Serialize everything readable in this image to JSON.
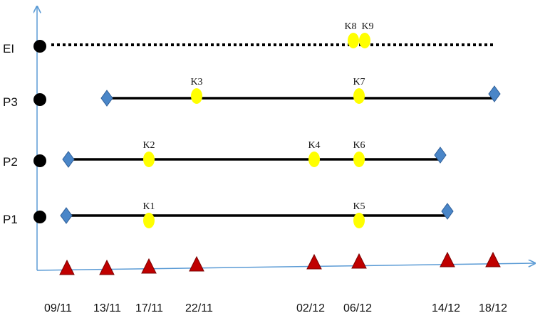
{
  "colors": {
    "axis": "#5b9bd5",
    "line": "#000000",
    "marker_row": "#000000",
    "milestone": "#ffff00",
    "endpoint": "#4a86c8",
    "event": "#c00000"
  },
  "rows": [
    {
      "label": "EI",
      "style": "dotted",
      "start": null,
      "end": "18/12"
    },
    {
      "label": "P3",
      "style": "solid",
      "start": "13/11",
      "end": "18/12"
    },
    {
      "label": "P2",
      "style": "solid",
      "start": "09/11",
      "end": "14/12"
    },
    {
      "label": "P1",
      "style": "solid",
      "start": "09/11",
      "end": "14/12"
    }
  ],
  "milestones": [
    {
      "label": "K1",
      "row": "P1",
      "date": "17/11"
    },
    {
      "label": "K2",
      "row": "P2",
      "date": "17/11"
    },
    {
      "label": "K3",
      "row": "P3",
      "date": "22/11"
    },
    {
      "label": "K4",
      "row": "P2",
      "date": "02/12"
    },
    {
      "label": "K5",
      "row": "P1",
      "date": "06/12"
    },
    {
      "label": "K6",
      "row": "P2",
      "date": "06/12"
    },
    {
      "label": "K7",
      "row": "P3",
      "date": "06/12"
    },
    {
      "label": "K8",
      "row": "EI",
      "date": "06/12"
    },
    {
      "label": "K9",
      "row": "EI",
      "date": "06/12"
    }
  ],
  "dates": [
    "09/11",
    "13/11",
    "17/11",
    "22/11",
    "02/12",
    "06/12",
    "14/12",
    "18/12"
  ]
}
